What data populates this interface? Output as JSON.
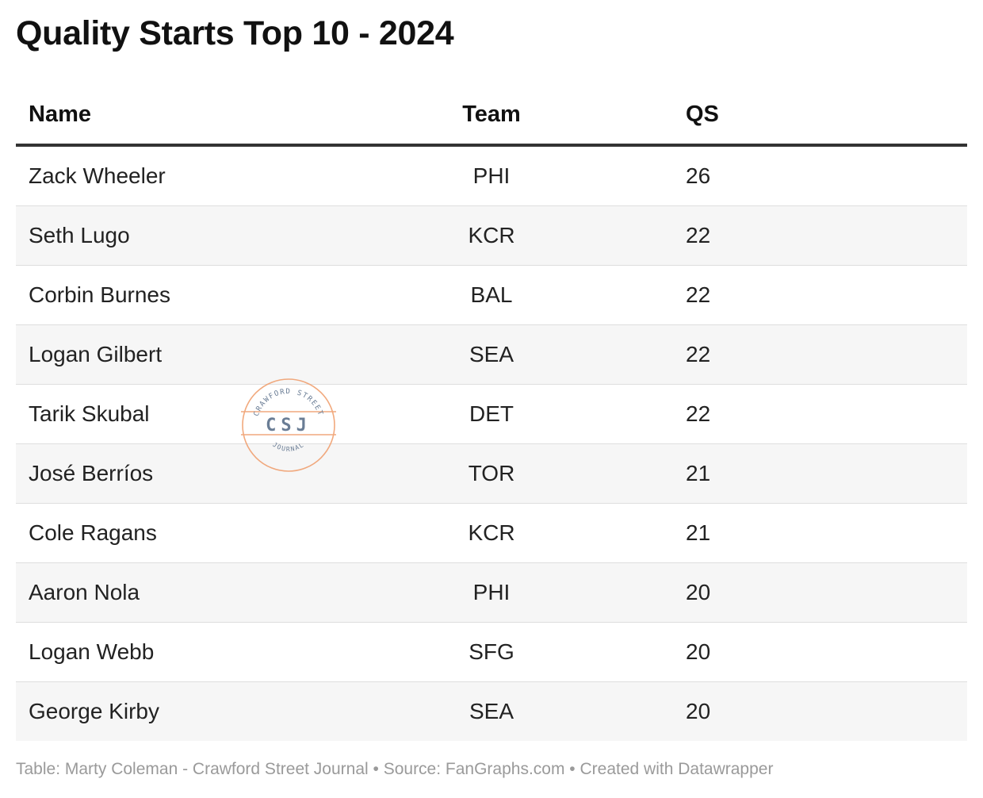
{
  "chart_data": {
    "type": "table",
    "title": "Quality Starts Top 10 - 2024",
    "columns": [
      "Name",
      "Team",
      "QS"
    ],
    "rows": [
      {
        "name": "Zack Wheeler",
        "team": "PHI",
        "qs": "26"
      },
      {
        "name": "Seth Lugo",
        "team": "KCR",
        "qs": "22"
      },
      {
        "name": "Corbin Burnes",
        "team": "BAL",
        "qs": "22"
      },
      {
        "name": "Logan Gilbert",
        "team": "SEA",
        "qs": "22"
      },
      {
        "name": "Tarik Skubal",
        "team": "DET",
        "qs": "22"
      },
      {
        "name": "José Berríos",
        "team": "TOR",
        "qs": "21"
      },
      {
        "name": "Cole Ragans",
        "team": "KCR",
        "qs": "21"
      },
      {
        "name": "Aaron Nola",
        "team": "PHI",
        "qs": "20"
      },
      {
        "name": "Logan Webb",
        "team": "SFG",
        "qs": "20"
      },
      {
        "name": "George Kirby",
        "team": "SEA",
        "qs": "20"
      }
    ],
    "footer": {
      "credit": "Table: Marty Coleman - Crawford Street Journal",
      "separator": " • ",
      "source": "Source: FanGraphs.com",
      "tool": "Created with Datawrapper"
    }
  },
  "watermark": {
    "top_text": "CRAWFORD STREET",
    "center_text": "CSJ",
    "bottom_text": "JOURNAL",
    "ring_color": "#f0a070",
    "text_color": "#5a6f8a"
  },
  "colors": {
    "header_rule": "#333333",
    "row_divider": "#dedede",
    "alt_row_bg": "#f6f6f6",
    "footer_text": "#9a9a9a"
  }
}
